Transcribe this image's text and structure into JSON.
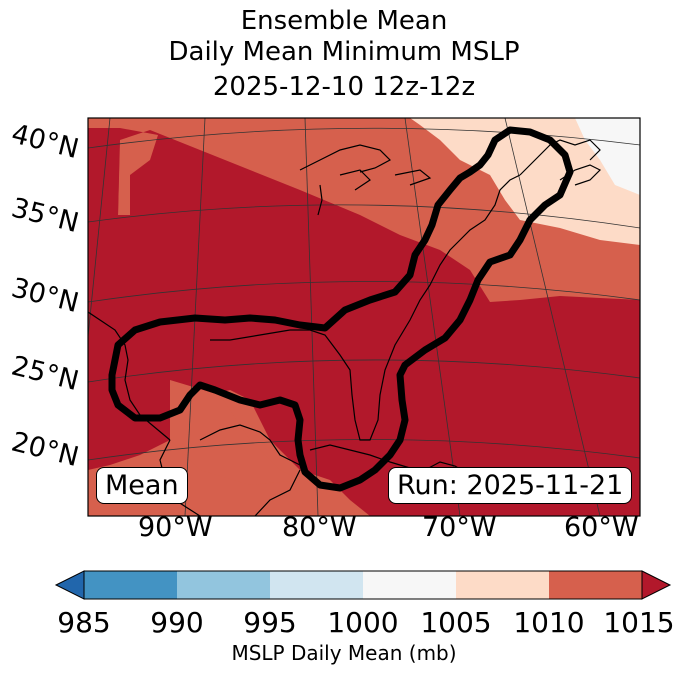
{
  "title": {
    "line1": "Ensemble Mean",
    "line2": "Daily Mean Minimum MSLP",
    "line3": "2025-12-10 12z-12z"
  },
  "map": {
    "lat_labels": [
      "40°N",
      "35°N",
      "30°N",
      "25°N",
      "20°N"
    ],
    "lon_labels": [
      "90°W",
      "80°W",
      "70°W",
      "60°W"
    ],
    "label_left": "Mean",
    "label_right": "Run: 2025-11-21",
    "field_colors": {
      "1005-1010": "#fddbc7",
      "1010-1015": "#d6604d",
      "above-1015": "#b2182b",
      "1000-1005": "#f7f7f7"
    },
    "contour_color": "#000000"
  },
  "colorbar": {
    "ticks": [
      "985",
      "990",
      "995",
      "1000",
      "1005",
      "1010",
      "1015"
    ],
    "colors": [
      "#2166ac",
      "#4393c3",
      "#92c5de",
      "#d1e5f0",
      "#f7f7f7",
      "#fddbc7",
      "#d6604d",
      "#b2182b"
    ],
    "label": "MSLP Daily Mean (mb)"
  }
}
